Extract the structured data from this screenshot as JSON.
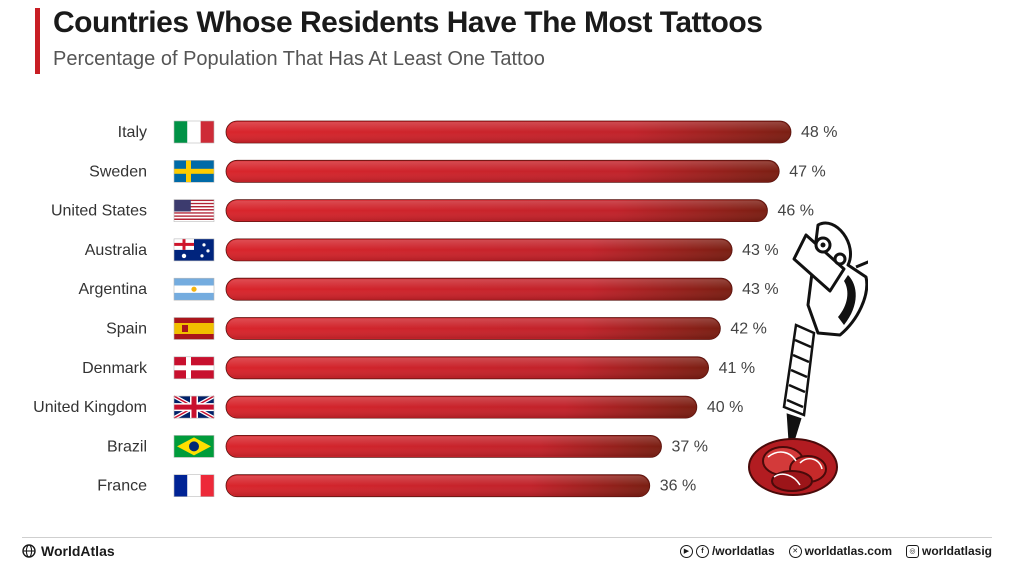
{
  "title": "Countries Whose Residents Have The Most Tattoos",
  "subtitle": "Percentage of Population That Has At Least One Tattoo",
  "chart_data": {
    "type": "bar",
    "orientation": "horizontal",
    "categories": [
      "Italy",
      "Sweden",
      "United States",
      "Australia",
      "Argentina",
      "Spain",
      "Denmark",
      "United Kingdom",
      "Brazil",
      "France"
    ],
    "values": [
      48,
      47,
      46,
      43,
      43,
      42,
      41,
      40,
      37,
      36
    ],
    "value_labels": [
      "48 %",
      "47 %",
      "46 %",
      "43 %",
      "43 %",
      "42 %",
      "41 %",
      "40 %",
      "37 %",
      "36 %"
    ],
    "flags": [
      "italy-flag",
      "sweden-flag",
      "usa-flag",
      "australia-flag",
      "argentina-flag",
      "spain-flag",
      "denmark-flag",
      "uk-flag",
      "brazil-flag",
      "france-flag"
    ],
    "xlim": [
      0,
      48
    ],
    "grid": false,
    "legend": "none",
    "colors": {
      "bar_start": "#d9252c",
      "bar_end": "#7a1e12"
    }
  },
  "footer": {
    "brand": "WorldAtlas",
    "social": [
      {
        "icon": "youtube-facebook-icon",
        "text": "/worldatlas"
      },
      {
        "icon": "x-twitter-icon",
        "text": "worldatlas.com"
      },
      {
        "icon": "instagram-icon",
        "text": "worldatlasig"
      }
    ]
  }
}
